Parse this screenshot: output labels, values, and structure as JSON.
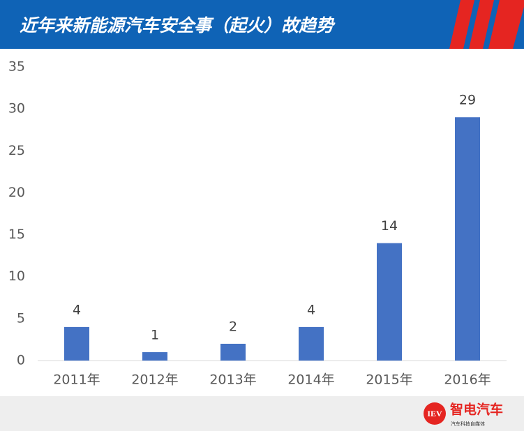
{
  "chart_data": {
    "type": "bar",
    "title": "近年来新能源汽车安全事（起火）故趋势",
    "categories": [
      "2011年",
      "2012年",
      "2013年",
      "2014年",
      "2015年",
      "2016年"
    ],
    "values": [
      4,
      1,
      2,
      4,
      14,
      29
    ],
    "color": "#4472c4",
    "ylim": [
      0,
      35
    ],
    "yticks": [
      0,
      5,
      10,
      15,
      20,
      25,
      30,
      35
    ],
    "grid": false
  },
  "footer": {
    "logo": "IEV",
    "brand": "智电汽车",
    "tagline": "汽车科技自媒体"
  }
}
